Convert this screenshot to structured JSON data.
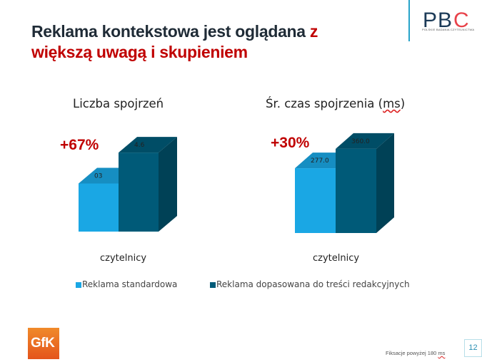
{
  "slide": {
    "title_part1": "Reklama kontekstowa jest oglądana",
    "title_red_1": "z",
    "title_red_2": "większą uwagą i skupieniem",
    "logo_text": "PBC",
    "logo_sub": "POLSKIE BADANIA CZYTELNICTWA",
    "gfk_logo": "GfK",
    "footnote_pre": "Fiksacje powyżej 180",
    "footnote_unit": "ms",
    "page_number": "12"
  },
  "colors": {
    "standard": "#1aa7e4",
    "dopasowana": "#005a78",
    "accent_red": "#c00000"
  },
  "chart_data": [
    {
      "type": "bar",
      "title_pre": "Liczba spojrzeń",
      "categories": [
        "czytelnicy"
      ],
      "series": [
        {
          "name": "Reklama standardowa",
          "values": [
            2.8
          ],
          "label": "03"
        },
        {
          "name": "Reklama dopasowana do treści redakcyjnych",
          "values": [
            4.6
          ],
          "label": "4.6"
        }
      ],
      "ylim": [
        0,
        5.6
      ],
      "annotation": "+67%",
      "legend": "bottom"
    },
    {
      "type": "bar",
      "title_pre": "Śr. czas spojrzenia (",
      "title_unit": "ms",
      "title_post": ")",
      "categories": [
        "czytelnicy"
      ],
      "series": [
        {
          "name": "Reklama standardowa",
          "values": [
            277.0
          ],
          "label": "277.0"
        },
        {
          "name": "Reklama dopasowana do treści redakcyjnych",
          "values": [
            360.0
          ],
          "label": "360.0"
        }
      ],
      "ylim": [
        0,
        390
      ],
      "annotation": "+30%",
      "legend": "bottom"
    }
  ],
  "legend": [
    {
      "label": "Reklama standardowa",
      "color": "#1aa7e4"
    },
    {
      "label": "Reklama dopasowana do treści redakcyjnych",
      "color": "#005a78"
    }
  ]
}
